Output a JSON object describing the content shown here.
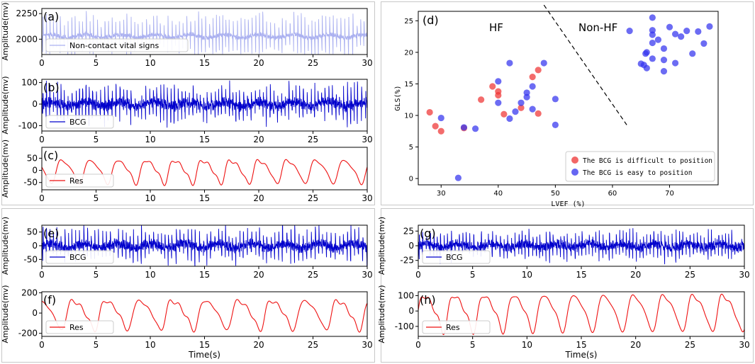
{
  "colors": {
    "bcg": "#0000cc",
    "res": "#ee1111",
    "vital": "#aab0f0",
    "hf_hard": "#ee3333",
    "hf_easy": "#3333ee",
    "axis": "#000000"
  },
  "chart_data": [
    {
      "id": "a",
      "type": "line",
      "panel_label": "(a)",
      "ylabel": "Amplitude(mv)",
      "xlabel": "",
      "xlim": [
        0,
        30
      ],
      "ylim": [
        1850,
        2300
      ],
      "xticks": [
        0,
        5,
        10,
        15,
        20,
        25,
        30
      ],
      "yticks": [
        2000,
        2250
      ],
      "series": [
        {
          "name": "Non-contact vital signs",
          "color": "#aab0f0",
          "baseline": 2030,
          "beat_interval": 0.34,
          "spike_amp": 210,
          "noise": 25,
          "resp_amp": 15,
          "resp_period": 3.2
        }
      ]
    },
    {
      "id": "b",
      "type": "line",
      "panel_label": "(b)",
      "ylabel": "Amplitude(mv)",
      "xlabel": "",
      "xlim": [
        0,
        30
      ],
      "ylim": [
        -125,
        115
      ],
      "xticks": [
        0,
        5,
        10,
        15,
        20,
        25,
        30
      ],
      "yticks": [
        -100,
        0,
        100
      ],
      "series": [
        {
          "name": "BCG",
          "color": "#0000cc",
          "baseline": 0,
          "beat_interval": 0.34,
          "spike_amp": 90,
          "noise": 28,
          "resp_amp": 10,
          "resp_period": 3.2
        }
      ]
    },
    {
      "id": "c",
      "type": "line",
      "panel_label": "(c)",
      "ylabel": "Amplitude(mv)",
      "xlabel": "",
      "xlim": [
        0,
        30
      ],
      "ylim": [
        -80,
        95
      ],
      "xticks": [
        0,
        5,
        10,
        15,
        20,
        25,
        30
      ],
      "yticks": [
        -50,
        0,
        50
      ],
      "series": [
        {
          "name": "Res",
          "color": "#ee1111",
          "baseline": 0,
          "resp_period": 2.6,
          "resp_amp": 55,
          "style": "breath"
        }
      ]
    },
    {
      "id": "e",
      "type": "line",
      "panel_label": "(e)",
      "ylabel": "Amplitude(mv)",
      "xlabel": "",
      "xlim": [
        0,
        30
      ],
      "ylim": [
        -75,
        75
      ],
      "xticks": [
        0,
        5,
        10,
        15,
        20,
        25,
        30
      ],
      "yticks": [
        -50,
        0,
        50
      ],
      "series": [
        {
          "name": "BCG",
          "color": "#0000cc",
          "baseline": 0,
          "beat_interval": 0.36,
          "spike_amp": 65,
          "noise": 20,
          "resp_amp": 8,
          "resp_period": 3.1
        }
      ]
    },
    {
      "id": "f",
      "type": "line",
      "panel_label": "(f)",
      "ylabel": "Amplitude(mv)",
      "xlabel": "Time(s)",
      "xlim": [
        0,
        30
      ],
      "ylim": [
        -230,
        210
      ],
      "xticks": [
        0,
        5,
        10,
        15,
        20,
        25,
        30
      ],
      "yticks": [
        -200,
        0,
        200
      ],
      "series": [
        {
          "name": "Res",
          "color": "#ee1111",
          "baseline": 0,
          "resp_period": 3.05,
          "resp_amp": 165,
          "style": "breath"
        }
      ]
    },
    {
      "id": "g",
      "type": "line",
      "panel_label": "(g)",
      "ylabel": "Amplitude(mv)",
      "xlabel": "",
      "xlim": [
        0,
        30
      ],
      "ylim": [
        -35,
        35
      ],
      "xticks": [
        0,
        5,
        10,
        15,
        20,
        25,
        30
      ],
      "yticks": [
        -25,
        0,
        25
      ],
      "series": [
        {
          "name": "BCG",
          "color": "#0000cc",
          "baseline": 0,
          "beat_interval": 0.33,
          "spike_amp": 25,
          "noise": 9,
          "resp_amp": 3,
          "resp_period": 3.0
        }
      ]
    },
    {
      "id": "h",
      "type": "line",
      "panel_label": "(h)",
      "ylabel": "Amplitude(mv)",
      "xlabel": "Time(s)",
      "xlim": [
        0,
        30
      ],
      "ylim": [
        -165,
        125
      ],
      "xticks": [
        0,
        5,
        10,
        15,
        20,
        25,
        30
      ],
      "yticks": [
        -100,
        0,
        100
      ],
      "series": [
        {
          "name": "Res",
          "color": "#ee1111",
          "baseline": 0,
          "resp_period": 2.75,
          "resp_amp": 135,
          "style": "breath"
        }
      ]
    },
    {
      "id": "d",
      "type": "scatter",
      "panel_label": "(d)",
      "xlabel": "LVEF (%)",
      "ylabel": "GLS(%)",
      "xlim": [
        26,
        78.5
      ],
      "ylim": [
        -1,
        26.5
      ],
      "xticks": [
        30,
        40,
        50,
        60,
        70
      ],
      "yticks": [
        0,
        5,
        10,
        15,
        20,
        25
      ],
      "region_labels": [
        "HF",
        "Non-HF"
      ],
      "divider": {
        "x": [
          48,
          62.5
        ],
        "y": [
          27.5,
          8.5
        ]
      },
      "series": [
        {
          "name": "The BCG is difficult to position",
          "color": "#ee3333",
          "points": [
            [
              28,
              10.5
            ],
            [
              29,
              8.3
            ],
            [
              30,
              7.5
            ],
            [
              34,
              8
            ],
            [
              37,
              12.5
            ],
            [
              39,
              14.6
            ],
            [
              40,
              13.8
            ],
            [
              40,
              13.2
            ],
            [
              41,
              10.2
            ],
            [
              44,
              11.2
            ],
            [
              46,
              16.1
            ],
            [
              47,
              17.2
            ],
            [
              47,
              10.3
            ]
          ]
        },
        {
          "name": "The BCG is easy to position",
          "color": "#3333ee",
          "points": [
            [
              30,
              9.6
            ],
            [
              33,
              0.1
            ],
            [
              34,
              8.1
            ],
            [
              36,
              7.9
            ],
            [
              40,
              15.4
            ],
            [
              40,
              12
            ],
            [
              42,
              18.3
            ],
            [
              42,
              9.5
            ],
            [
              43,
              10.6
            ],
            [
              44,
              12
            ],
            [
              45,
              13.6
            ],
            [
              45,
              12.9
            ],
            [
              46,
              14.6
            ],
            [
              46,
              11
            ],
            [
              48,
              18.3
            ],
            [
              50,
              12.6
            ],
            [
              50,
              8.5
            ],
            [
              63,
              23.4
            ],
            [
              65,
              18.2
            ],
            [
              66,
              20
            ],
            [
              66,
              17.5
            ],
            [
              67,
              25.5
            ],
            [
              67,
              23.5
            ],
            [
              67,
              22.8
            ],
            [
              67,
              21.5
            ],
            [
              67,
              19
            ],
            [
              68,
              22
            ],
            [
              69,
              20.6
            ],
            [
              69,
              17
            ],
            [
              69,
              18.8
            ],
            [
              70,
              24
            ],
            [
              71,
              22.9
            ],
            [
              71,
              18.3
            ],
            [
              72,
              22.5
            ],
            [
              73,
              23.4
            ],
            [
              74,
              19.8
            ],
            [
              75,
              23.3
            ],
            [
              76,
              21.4
            ],
            [
              77,
              24.1
            ],
            [
              65.5,
              18
            ],
            [
              65.8,
              19.8
            ]
          ]
        }
      ]
    }
  ]
}
